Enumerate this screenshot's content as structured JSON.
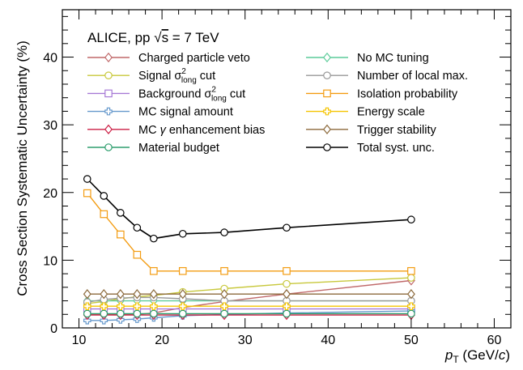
{
  "chart_data": {
    "type": "line",
    "xlabel_main": "p",
    "xlabel_sub": "T",
    "xlabel_rest": " (GeV/",
    "xlabel_c": "c",
    "xlabel_close": ")",
    "ylabel": "Cross Section Systematic Uncertainty (%)",
    "xlim": [
      8,
      62
    ],
    "ylim": [
      0,
      47
    ],
    "xticks": [
      10,
      20,
      30,
      40,
      50,
      60
    ],
    "yticks": [
      0,
      10,
      20,
      30,
      40
    ],
    "header": {
      "prefix": "ALICE, pp ",
      "sqrt": "√",
      "s": "s",
      "suffix": " = 7 TeV"
    },
    "x": [
      11,
      13,
      15,
      17,
      19,
      22.5,
      27.5,
      35,
      50
    ],
    "series": [
      {
        "name": "Charged particle veto",
        "color": "#c0696a",
        "marker": "diamond",
        "legend_col": 0,
        "values": [
          2.0,
          2.0,
          2.0,
          2.0,
          2.2,
          3.0,
          3.9,
          5.0,
          7.0
        ]
      },
      {
        "name": "Signal σ²long cut",
        "label_parts": [
          "Signal σ",
          "2",
          "long",
          " cut"
        ],
        "color": "#c8c83c",
        "marker": "circle",
        "legend_col": 0,
        "values": [
          3.6,
          3.9,
          4.3,
          4.6,
          4.8,
          5.3,
          5.8,
          6.5,
          7.4
        ]
      },
      {
        "name": "Background σ²long cut",
        "label_parts": [
          "Background σ",
          "2",
          "long",
          " cut"
        ],
        "color": "#a77ad6",
        "marker": "square",
        "legend_col": 0,
        "values": [
          2.8,
          2.8,
          2.8,
          2.8,
          2.8,
          2.8,
          2.8,
          2.8,
          2.8
        ]
      },
      {
        "name": "MC signal amount",
        "color": "#6699cc",
        "marker": "cross",
        "legend_col": 0,
        "values": [
          1.1,
          1.1,
          1.2,
          1.3,
          1.5,
          1.8,
          2.0,
          2.2,
          2.5
        ]
      },
      {
        "name": "MC γ enhancement bias",
        "label_parts": [
          "MC ",
          "γ",
          " enhancement bias"
        ],
        "color": "#cc1f45",
        "marker": "diamond",
        "legend_col": 0,
        "values": [
          1.9,
          1.9,
          1.9,
          1.9,
          1.9,
          1.9,
          1.9,
          1.9,
          1.9
        ]
      },
      {
        "name": "Material budget",
        "color": "#2e9e6e",
        "marker": "circle",
        "legend_col": 0,
        "values": [
          2.1,
          2.1,
          2.1,
          2.1,
          2.1,
          2.1,
          2.1,
          2.1,
          2.1
        ]
      },
      {
        "name": "No MC tuning",
        "color": "#5ccc9a",
        "marker": "diamond",
        "legend_col": 1,
        "values": [
          4.0,
          4.0,
          4.0,
          4.0,
          4.0,
          4.0,
          4.0,
          4.0,
          4.0
        ]
      },
      {
        "name": "Number of local max.",
        "color": "#999999",
        "marker": "circle",
        "legend_col": 1,
        "values": [
          3.8,
          4.2,
          4.4,
          4.5,
          4.5,
          4.3,
          4.0,
          4.0,
          4.0
        ]
      },
      {
        "name": "Isolation probability",
        "color": "#f39c12",
        "marker": "square",
        "legend_col": 1,
        "values": [
          19.9,
          16.8,
          13.8,
          10.8,
          8.4,
          8.4,
          8.4,
          8.4,
          8.4
        ]
      },
      {
        "name": "Energy scale",
        "color": "#f5c400",
        "marker": "cross",
        "legend_col": 1,
        "values": [
          3.2,
          3.2,
          3.2,
          3.2,
          3.2,
          3.2,
          3.2,
          3.2,
          3.2
        ]
      },
      {
        "name": "Trigger stability",
        "color": "#8c6a3c",
        "marker": "diamond",
        "legend_col": 1,
        "values": [
          5.0,
          5.0,
          5.0,
          5.0,
          5.0,
          5.0,
          5.0,
          5.0,
          5.0
        ]
      },
      {
        "name": "Total syst. unc.",
        "color": "#000000",
        "marker": "circle",
        "legend_col": 1,
        "values": [
          22.0,
          19.5,
          17.0,
          14.8,
          13.2,
          13.9,
          14.1,
          14.8,
          16.0
        ]
      }
    ]
  }
}
